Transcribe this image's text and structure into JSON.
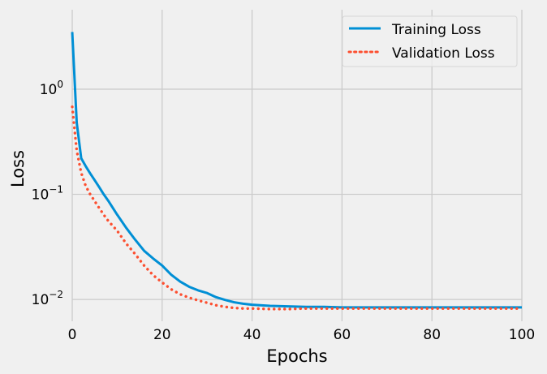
{
  "chart_data": {
    "type": "line",
    "title": "",
    "xlabel": "Epochs",
    "ylabel": "Loss",
    "xscale": "linear",
    "yscale": "log",
    "xlim": [
      0,
      100
    ],
    "ylim": [
      0.0062,
      5.7
    ],
    "grid": true,
    "legend_position": "top-right",
    "xticks": [
      0,
      20,
      40,
      60,
      80,
      100
    ],
    "xtick_labels": [
      "0",
      "20",
      "40",
      "60",
      "80",
      "100"
    ],
    "yticks": [
      1,
      0.1,
      0.01
    ],
    "ytick_labels": [
      {
        "base": "10",
        "exp": "0"
      },
      {
        "base": "10",
        "exp": "−1"
      },
      {
        "base": "10",
        "exp": "−2"
      }
    ],
    "x": [
      0,
      1,
      2,
      3,
      4,
      5,
      6,
      7,
      8,
      10,
      12,
      14,
      16,
      18,
      20,
      22,
      24,
      26,
      28,
      30,
      32,
      34,
      36,
      38,
      40,
      44,
      48,
      52,
      56,
      60,
      70,
      80,
      90,
      100
    ],
    "series": [
      {
        "name": "Training Loss",
        "color": "#008fd5",
        "style": "solid",
        "values": [
          3.5,
          0.48,
          0.22,
          0.185,
          0.158,
          0.136,
          0.117,
          0.1,
          0.087,
          0.064,
          0.048,
          0.037,
          0.029,
          0.0245,
          0.021,
          0.0172,
          0.0148,
          0.0132,
          0.0122,
          0.0115,
          0.0105,
          0.0099,
          0.0094,
          0.0091,
          0.0089,
          0.0087,
          0.0086,
          0.0085,
          0.0085,
          0.0084,
          0.0084,
          0.0084,
          0.0084,
          0.0084
        ]
      },
      {
        "name": "Validation Loss",
        "color": "#fc4f30",
        "style": "dotted",
        "values": [
          0.68,
          0.26,
          0.16,
          0.12,
          0.1,
          0.086,
          0.074,
          0.064,
          0.056,
          0.045,
          0.034,
          0.027,
          0.021,
          0.017,
          0.0145,
          0.0125,
          0.0112,
          0.0104,
          0.0098,
          0.0093,
          0.0088,
          0.0085,
          0.0083,
          0.0082,
          0.0082,
          0.0081,
          0.0081,
          0.0082,
          0.0082,
          0.0082,
          0.0082,
          0.0082,
          0.0082,
          0.0082
        ]
      }
    ]
  }
}
